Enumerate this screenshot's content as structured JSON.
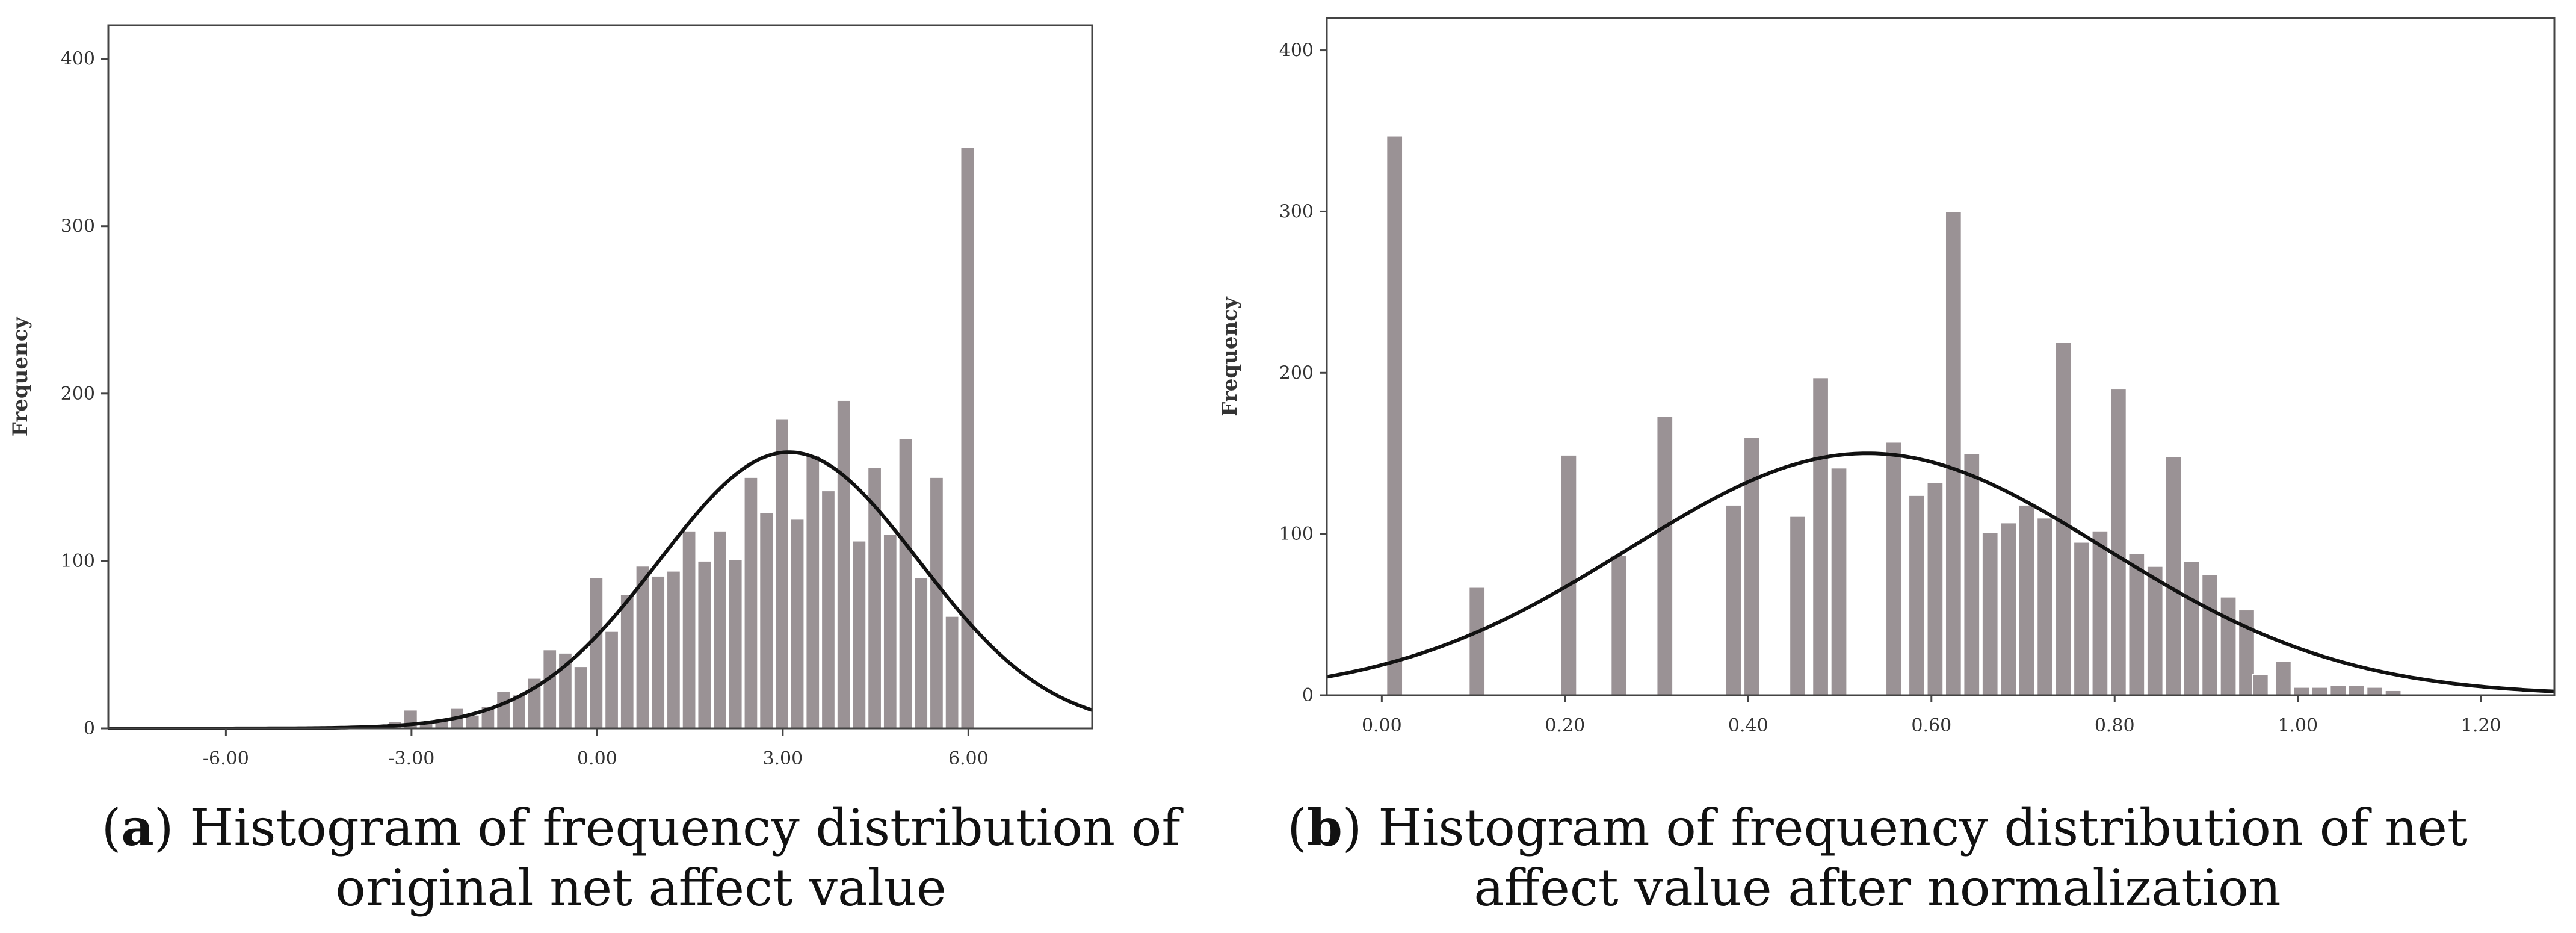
{
  "chart_data": [
    {
      "type": "bar",
      "panel_letter": "a",
      "caption": "Histogram of frequency distribution of original net affect value",
      "xlabel": "",
      "ylabel": "Frequency",
      "xlim": [
        -7.9,
        8.0
      ],
      "ylim": [
        0,
        420
      ],
      "x_ticks": [
        -6.0,
        -3.0,
        0.0,
        3.0,
        6.0
      ],
      "x_tick_labels": [
        "-6.00",
        "-3.00",
        "0.00",
        "3.00",
        "6.00"
      ],
      "y_ticks": [
        0,
        100,
        200,
        300,
        400
      ],
      "y_tick_labels": [
        "0",
        "100",
        "200",
        "300",
        "400"
      ],
      "bin_width": 0.25,
      "bins": [
        {
          "x": -5.0,
          "y": 1
        },
        {
          "x": -3.25,
          "y": 4
        },
        {
          "x": -3.0,
          "y": 11
        },
        {
          "x": -2.75,
          "y": 3
        },
        {
          "x": -2.5,
          "y": 6
        },
        {
          "x": -2.25,
          "y": 12
        },
        {
          "x": -2.0,
          "y": 8
        },
        {
          "x": -1.75,
          "y": 13
        },
        {
          "x": -1.5,
          "y": 22
        },
        {
          "x": -1.25,
          "y": 20
        },
        {
          "x": -1.0,
          "y": 30
        },
        {
          "x": -0.75,
          "y": 47
        },
        {
          "x": -0.5,
          "y": 45
        },
        {
          "x": -0.25,
          "y": 37
        },
        {
          "x": 0.0,
          "y": 90
        },
        {
          "x": 0.25,
          "y": 58
        },
        {
          "x": 0.5,
          "y": 80
        },
        {
          "x": 0.75,
          "y": 97
        },
        {
          "x": 1.0,
          "y": 91
        },
        {
          "x": 1.25,
          "y": 94
        },
        {
          "x": 1.5,
          "y": 118
        },
        {
          "x": 1.75,
          "y": 100
        },
        {
          "x": 2.0,
          "y": 118
        },
        {
          "x": 2.25,
          "y": 101
        },
        {
          "x": 2.5,
          "y": 150
        },
        {
          "x": 2.75,
          "y": 129
        },
        {
          "x": 3.0,
          "y": 185
        },
        {
          "x": 3.25,
          "y": 125
        },
        {
          "x": 3.5,
          "y": 163
        },
        {
          "x": 3.75,
          "y": 142
        },
        {
          "x": 4.0,
          "y": 196
        },
        {
          "x": 4.25,
          "y": 112
        },
        {
          "x": 4.5,
          "y": 156
        },
        {
          "x": 4.75,
          "y": 116
        },
        {
          "x": 5.0,
          "y": 173
        },
        {
          "x": 5.25,
          "y": 90
        },
        {
          "x": 5.5,
          "y": 150
        },
        {
          "x": 5.75,
          "y": 67
        },
        {
          "x": 6.0,
          "y": 347
        }
      ],
      "normal_curve": {
        "mean": 3.1,
        "sd": 2.1,
        "peak": 165
      }
    },
    {
      "type": "bar",
      "panel_letter": "b",
      "caption": "Histogram of frequency distribution of net affect value after normalization",
      "xlabel": "",
      "ylabel": "Frequency",
      "xlim": [
        -0.06,
        1.28
      ],
      "ylim": [
        0,
        420
      ],
      "x_ticks": [
        0.0,
        0.2,
        0.4,
        0.6,
        0.8,
        1.0,
        1.2
      ],
      "x_tick_labels": [
        "0.00",
        "0.20",
        "0.40",
        "0.60",
        "0.80",
        "1.00",
        "1.20"
      ],
      "y_ticks": [
        0,
        100,
        200,
        300,
        400
      ],
      "y_tick_labels": [
        "0",
        "100",
        "200",
        "300",
        "400"
      ],
      "bin_width": 0.0195,
      "bins": [
        {
          "x": 0.015,
          "y": 347
        },
        {
          "x": 0.105,
          "y": 67
        },
        {
          "x": 0.205,
          "y": 149
        },
        {
          "x": 0.26,
          "y": 87
        },
        {
          "x": 0.31,
          "y": 173
        },
        {
          "x": 0.385,
          "y": 118
        },
        {
          "x": 0.405,
          "y": 160
        },
        {
          "x": 0.455,
          "y": 111
        },
        {
          "x": 0.48,
          "y": 197
        },
        {
          "x": 0.5,
          "y": 141
        },
        {
          "x": 0.56,
          "y": 157
        },
        {
          "x": 0.585,
          "y": 124
        },
        {
          "x": 0.605,
          "y": 132
        },
        {
          "x": 0.625,
          "y": 300
        },
        {
          "x": 0.645,
          "y": 150
        },
        {
          "x": 0.665,
          "y": 101
        },
        {
          "x": 0.685,
          "y": 107
        },
        {
          "x": 0.705,
          "y": 118
        },
        {
          "x": 0.725,
          "y": 110
        },
        {
          "x": 0.745,
          "y": 219
        },
        {
          "x": 0.765,
          "y": 95
        },
        {
          "x": 0.785,
          "y": 102
        },
        {
          "x": 0.805,
          "y": 190
        },
        {
          "x": 0.825,
          "y": 88
        },
        {
          "x": 0.845,
          "y": 80
        },
        {
          "x": 0.865,
          "y": 148
        },
        {
          "x": 0.885,
          "y": 83
        },
        {
          "x": 0.905,
          "y": 75
        },
        {
          "x": 0.925,
          "y": 61
        },
        {
          "x": 0.945,
          "y": 53
        },
        {
          "x": 0.96,
          "y": 13
        },
        {
          "x": 0.985,
          "y": 21
        },
        {
          "x": 1.005,
          "y": 5
        },
        {
          "x": 1.025,
          "y": 5
        },
        {
          "x": 1.045,
          "y": 6
        },
        {
          "x": 1.065,
          "y": 6
        },
        {
          "x": 1.085,
          "y": 5
        },
        {
          "x": 1.105,
          "y": 3
        }
      ],
      "normal_curve": {
        "mean": 0.53,
        "sd": 0.26,
        "peak": 150
      }
    }
  ]
}
